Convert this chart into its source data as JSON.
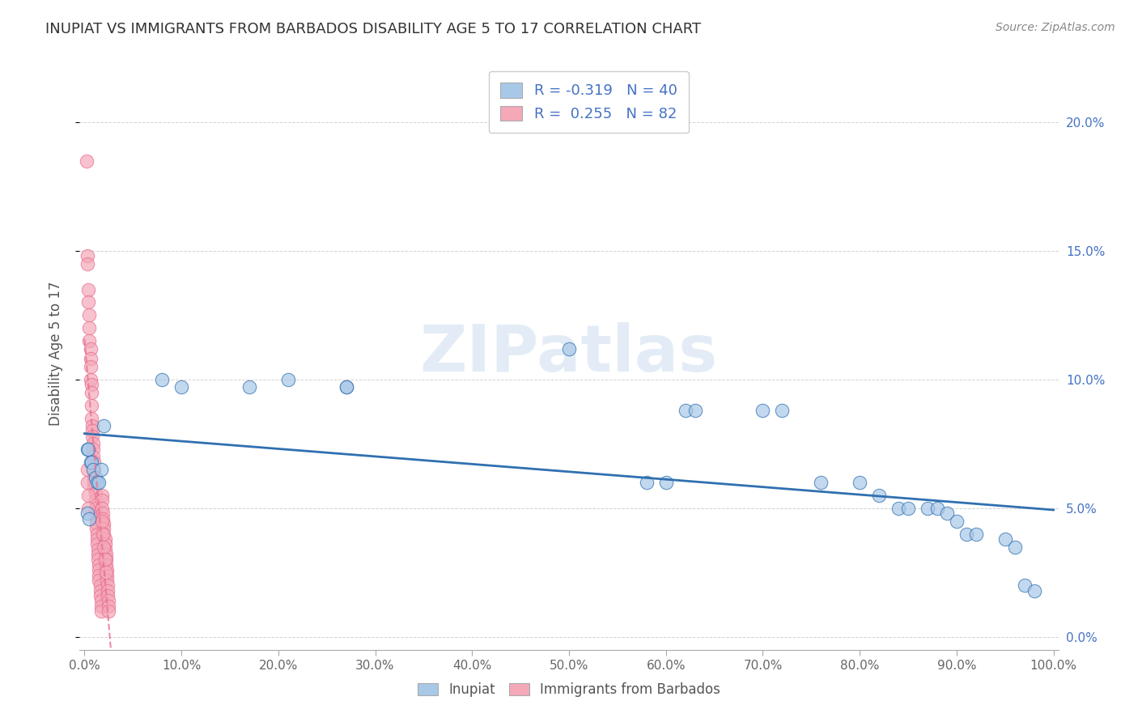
{
  "title": "INUPIAT VS IMMIGRANTS FROM BARBADOS DISABILITY AGE 5 TO 17 CORRELATION CHART",
  "source": "Source: ZipAtlas.com",
  "ylabel": "Disability Age 5 to 17",
  "R1": -0.319,
  "N1": 40,
  "R2": 0.255,
  "N2": 82,
  "color1": "#a8c8e8",
  "color2": "#f4a8b8",
  "line1_color": "#3070b0",
  "line2_color": "#e87090",
  "legend_label1": "Inupiat",
  "legend_label2": "Immigrants from Barbados",
  "inupiat_x": [
    0.003,
    0.004,
    0.006,
    0.007,
    0.009,
    0.011,
    0.013,
    0.015,
    0.017,
    0.02,
    0.003,
    0.005,
    0.08,
    0.1,
    0.17,
    0.21,
    0.27,
    0.27,
    0.5,
    0.58,
    0.6,
    0.62,
    0.63,
    0.7,
    0.72,
    0.76,
    0.8,
    0.82,
    0.84,
    0.85,
    0.87,
    0.88,
    0.89,
    0.9,
    0.91,
    0.92,
    0.95,
    0.96,
    0.97,
    0.98
  ],
  "inupiat_y": [
    0.073,
    0.073,
    0.068,
    0.068,
    0.065,
    0.062,
    0.06,
    0.06,
    0.065,
    0.082,
    0.048,
    0.046,
    0.1,
    0.097,
    0.097,
    0.1,
    0.097,
    0.097,
    0.112,
    0.06,
    0.06,
    0.088,
    0.088,
    0.088,
    0.088,
    0.06,
    0.06,
    0.055,
    0.05,
    0.05,
    0.05,
    0.05,
    0.048,
    0.045,
    0.04,
    0.04,
    0.038,
    0.035,
    0.02,
    0.018
  ],
  "barbados_x": [
    0.002,
    0.003,
    0.003,
    0.004,
    0.004,
    0.005,
    0.005,
    0.005,
    0.006,
    0.006,
    0.006,
    0.006,
    0.007,
    0.007,
    0.007,
    0.007,
    0.008,
    0.008,
    0.008,
    0.009,
    0.009,
    0.009,
    0.01,
    0.01,
    0.01,
    0.01,
    0.01,
    0.011,
    0.011,
    0.011,
    0.011,
    0.012,
    0.012,
    0.012,
    0.013,
    0.013,
    0.013,
    0.014,
    0.014,
    0.014,
    0.015,
    0.015,
    0.015,
    0.015,
    0.016,
    0.016,
    0.016,
    0.017,
    0.017,
    0.017,
    0.018,
    0.018,
    0.018,
    0.019,
    0.019,
    0.02,
    0.02,
    0.02,
    0.021,
    0.021,
    0.021,
    0.022,
    0.022,
    0.022,
    0.023,
    0.023,
    0.023,
    0.024,
    0.024,
    0.024,
    0.025,
    0.025,
    0.025,
    0.003,
    0.003,
    0.004,
    0.004,
    0.018,
    0.019,
    0.02,
    0.021,
    0.022
  ],
  "barbados_y": [
    0.185,
    0.148,
    0.145,
    0.135,
    0.13,
    0.125,
    0.12,
    0.115,
    0.112,
    0.108,
    0.105,
    0.1,
    0.098,
    0.095,
    0.09,
    0.085,
    0.082,
    0.08,
    0.078,
    0.075,
    0.073,
    0.07,
    0.068,
    0.065,
    0.062,
    0.06,
    0.058,
    0.056,
    0.053,
    0.05,
    0.048,
    0.046,
    0.044,
    0.042,
    0.04,
    0.038,
    0.036,
    0.034,
    0.032,
    0.03,
    0.028,
    0.026,
    0.024,
    0.022,
    0.02,
    0.018,
    0.016,
    0.014,
    0.012,
    0.01,
    0.055,
    0.053,
    0.05,
    0.048,
    0.046,
    0.044,
    0.042,
    0.04,
    0.038,
    0.036,
    0.034,
    0.032,
    0.03,
    0.028,
    0.026,
    0.024,
    0.022,
    0.02,
    0.018,
    0.016,
    0.014,
    0.012,
    0.01,
    0.065,
    0.06,
    0.055,
    0.05,
    0.045,
    0.04,
    0.035,
    0.03,
    0.025
  ],
  "xlim": [
    -0.005,
    1.005
  ],
  "ylim": [
    -0.005,
    0.225
  ],
  "x_ticks": [
    0.0,
    0.1,
    0.2,
    0.3,
    0.4,
    0.5,
    0.6,
    0.7,
    0.8,
    0.9,
    1.0
  ],
  "y_ticks": [
    0.0,
    0.05,
    0.1,
    0.15,
    0.2
  ],
  "y_tick_labels": [
    "0.0%",
    "5.0%",
    "10.0%",
    "15.0%",
    "20.0%"
  ],
  "x_tick_labels": [
    "0.0%",
    "10.0%",
    "20.0%",
    "30.0%",
    "40.0%",
    "50.0%",
    "60.0%",
    "70.0%",
    "80.0%",
    "90.0%",
    "100.0%"
  ]
}
